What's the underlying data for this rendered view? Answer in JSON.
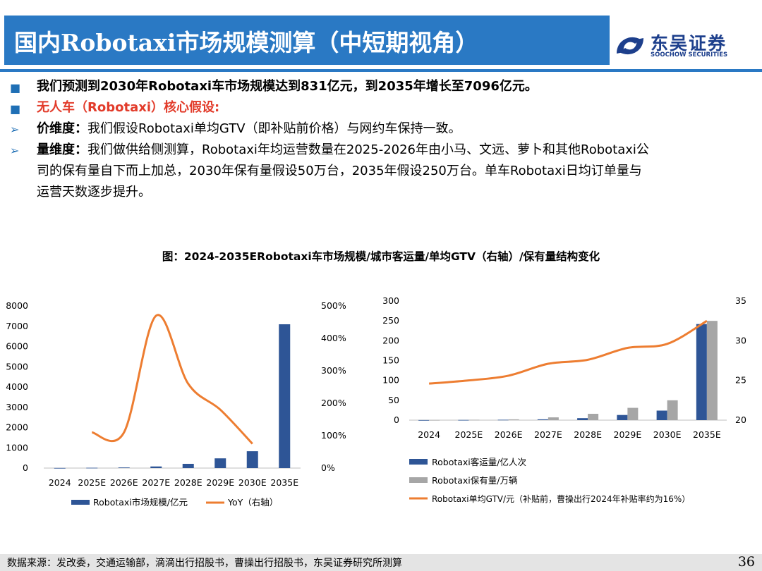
{
  "header": {
    "title": "国内Robotaxi市场规模测算（中短期视角）",
    "logo_name": "东吴证券",
    "logo_en": "SOOCHOW SECURITIES"
  },
  "bullets": {
    "b1": "我们预测到2030年Robotaxi车市场规模达到831亿元，到2035年增长至7096亿元。",
    "b2": "无人车（Robotaxi）核心假设:",
    "b3_label": "价维度：",
    "b3_text": "我们假设Robotaxi单均GTV（即补贴前价格）与网约车保持一致。",
    "b4_label": "量维度：",
    "b4_text_1": "我们做供给侧测算，Robotaxi年均运营数量在2025-2026年由小马、文远、萝卜和其他Robotaxi公",
    "b4_text_2": "司的保有量自下而上加总，2030年保有量假设50万台，2035年假设250万台。单车Robotaxi日均订单量与",
    "b4_text_3": "运营天数逐步提升。"
  },
  "figure_caption": "图：2024-2035ERobotaxi车市场规模/城市客运量/单均GTV（右轴）/保有量结构变化",
  "colors": {
    "accent": "#2a79c4",
    "bar_blue": "#2e5596",
    "bar_gray": "#a6a6a6",
    "line_orange": "#ed7d31",
    "red": "#e23b2a"
  },
  "chart_data": [
    {
      "type": "bar",
      "title": "",
      "categories": [
        "2024",
        "2025E",
        "2026E",
        "2027E",
        "2028E",
        "2029E",
        "2030E",
        "2035E"
      ],
      "series": [
        {
          "name": "Robotaxi市场规模/亿元",
          "axis": "left",
          "kind": "bar",
          "values": [
            5,
            15,
            30,
            80,
            210,
            480,
            831,
            7096
          ]
        },
        {
          "name": "YoY（右轴）",
          "axis": "right",
          "kind": "line",
          "values": [
            null,
            1.1,
            1.1,
            4.7,
            2.6,
            1.8,
            0.75,
            null
          ]
        }
      ],
      "ylim": [
        0,
        8000
      ],
      "yticks": [
        "0",
        "1000",
        "2000",
        "3000",
        "4000",
        "5000",
        "6000",
        "7000",
        "8000"
      ],
      "y2lim": [
        0,
        5
      ],
      "y2ticks": [
        "0%",
        "100%",
        "200%",
        "300%",
        "400%",
        "500%"
      ],
      "legend": [
        "Robotaxi市场规模/亿元",
        "YoY（右轴）"
      ],
      "legend_position": "bottom"
    },
    {
      "type": "bar",
      "title": "",
      "categories": [
        "2024",
        "2025E",
        "2026E",
        "2027E",
        "2028E",
        "2029E",
        "2030E",
        "2035E"
      ],
      "series": [
        {
          "name": "Robotaxi客运量/亿人次",
          "axis": "left",
          "kind": "bar",
          "values": [
            0.2,
            0.5,
            1,
            2,
            5,
            13,
            24,
            242
          ]
        },
        {
          "name": "Robotaxi保有量/万辆",
          "axis": "left",
          "kind": "bar",
          "values": [
            0.4,
            1,
            2,
            7,
            16,
            31,
            50,
            250
          ]
        },
        {
          "name": "Robotaxi单均GTV/元（补贴前，曹操出行2024年补贴率约为16%）",
          "axis": "right",
          "kind": "line",
          "values": [
            24.6,
            25.0,
            25.6,
            27.1,
            27.6,
            29.1,
            29.6,
            32.5
          ]
        }
      ],
      "ylim": [
        0,
        300
      ],
      "yticks": [
        "0",
        "50",
        "100",
        "150",
        "200",
        "250",
        "300"
      ],
      "y2lim": [
        20,
        35
      ],
      "y2ticks": [
        "20",
        "25",
        "30",
        "35"
      ],
      "legend": [
        "Robotaxi客运量/亿人次",
        "Robotaxi保有量/万辆",
        "Robotaxi单均GTV/元（补贴前，曹操出行2024年补贴率约为16%）"
      ],
      "legend_position": "bottom"
    }
  ],
  "footer": {
    "source": "数据来源：发改委，交通运输部，滴滴出行招股书，曹操出行招股书，东吴证券研究所测算",
    "page": "36"
  }
}
